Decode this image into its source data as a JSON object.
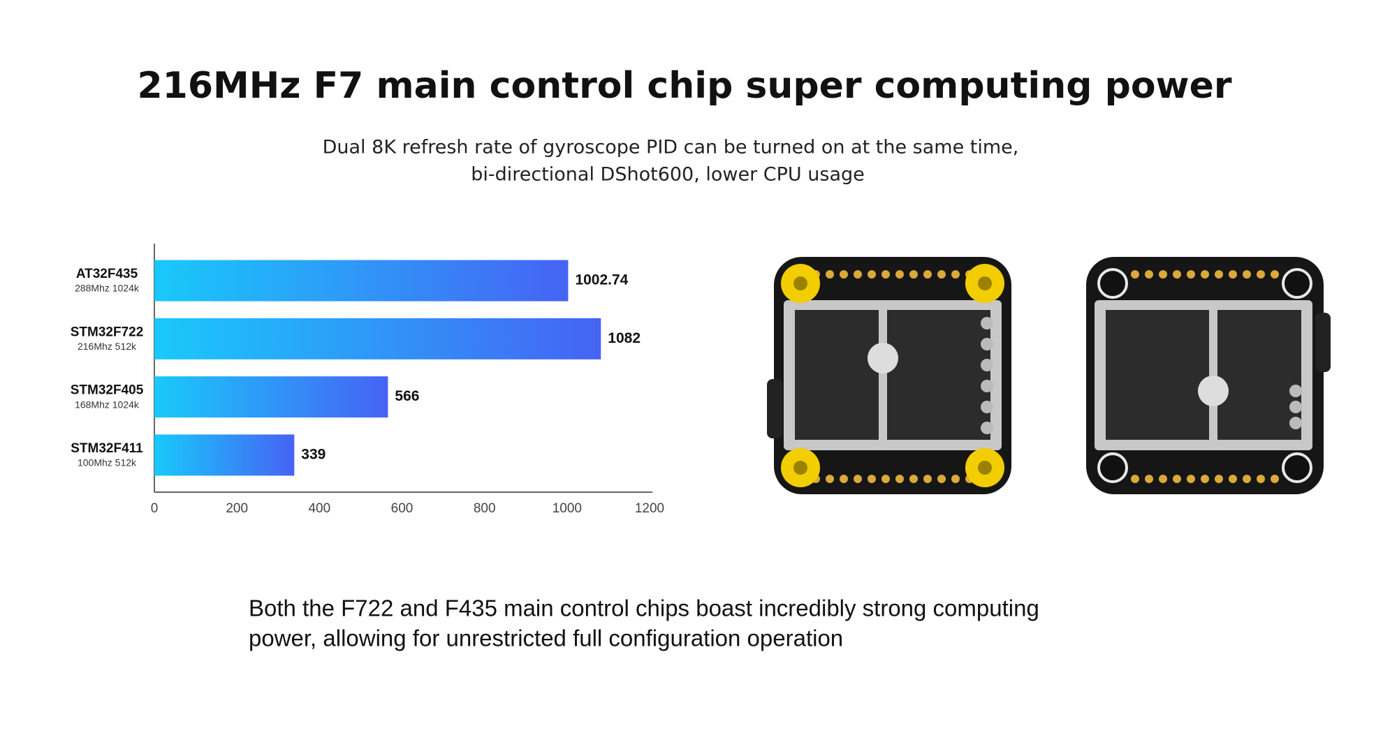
{
  "header": {
    "title": "216MHz F7 main control chip super computing power",
    "subtitle": [
      "Dual 8K refresh rate of gyroscope PID can be turned on at the same time,",
      "bi-directional DShot600, lower CPU usage"
    ]
  },
  "chart_data": {
    "type": "hbar",
    "categories": [
      "AT32F435",
      "STM32F722",
      "STM32F405",
      "STM32F411"
    ],
    "category_details": [
      "288Mhz 1024k",
      "216Mhz 512k",
      "168Mhz 1024k",
      "100Mhz 512k"
    ],
    "values": [
      1002.74,
      1082,
      566,
      339
    ],
    "gradient": [
      "#19c9fb",
      "#4663f4"
    ],
    "xlim": [
      0,
      1200
    ],
    "xticks": [
      0,
      200,
      400,
      600,
      800,
      1000,
      1200
    ],
    "grid": false
  },
  "footer": {
    "text": [
      "Both the F722 and F435 main control chips boast incredibly strong computing",
      "power, allowing for unrestricted full configuration operation"
    ]
  }
}
